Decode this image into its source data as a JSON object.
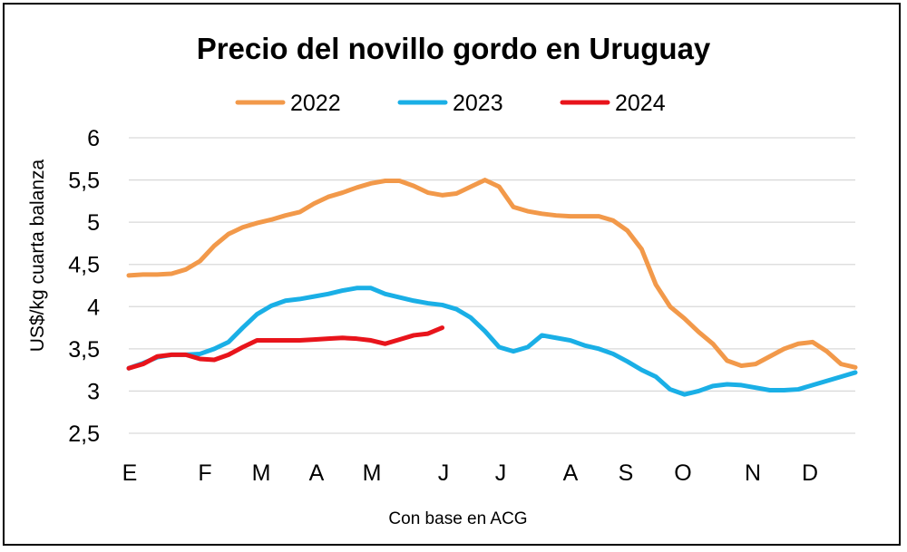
{
  "chart_data": {
    "type": "line",
    "title": "Precio del novillo gordo en Uruguay",
    "ylabel": "US$/kg cuarta balanza",
    "xlabel": "",
    "note": "Con base en ACG",
    "ylim": [
      2.5,
      6
    ],
    "yticks": [
      "2,5",
      "3",
      "3,5",
      "4",
      "4,5",
      "5",
      "5,5",
      "6"
    ],
    "grid": true,
    "legend_position": "top",
    "month_labels": [
      "E",
      "F",
      "M",
      "A",
      "M",
      "J",
      "J",
      "A",
      "S",
      "O",
      "N",
      "D"
    ],
    "x_unit": "week of year (0-51)",
    "series": [
      {
        "name": "2022",
        "color": "#f2994a",
        "x": [
          0,
          1,
          2,
          3,
          4,
          5,
          6,
          7,
          8,
          9,
          10,
          11,
          12,
          13,
          14,
          15,
          16,
          17,
          18,
          19,
          20,
          21,
          22,
          23,
          24,
          25,
          26,
          27,
          28,
          29,
          30,
          31,
          32,
          33,
          34,
          35,
          36,
          37,
          38,
          39,
          40,
          41,
          42,
          43,
          44,
          45,
          46,
          47,
          48,
          49,
          50,
          51
        ],
        "values": [
          4.37,
          4.38,
          4.38,
          4.39,
          4.44,
          4.54,
          4.72,
          4.86,
          4.94,
          4.99,
          5.03,
          5.08,
          5.12,
          5.22,
          5.3,
          5.35,
          5.41,
          5.46,
          5.49,
          5.49,
          5.43,
          5.35,
          5.32,
          5.34,
          5.42,
          5.5,
          5.42,
          5.18,
          5.13,
          5.1,
          5.08,
          5.07,
          5.07,
          5.07,
          5.02,
          4.9,
          4.68,
          4.26,
          4.0,
          3.86,
          3.7,
          3.56,
          3.36,
          3.3,
          3.32,
          3.41,
          3.5,
          3.56,
          3.58,
          3.47,
          3.32,
          3.28
        ]
      },
      {
        "name": "2023",
        "color": "#1aafe6",
        "x": [
          0,
          1,
          2,
          3,
          4,
          5,
          6,
          7,
          8,
          9,
          10,
          11,
          12,
          13,
          14,
          15,
          16,
          17,
          18,
          19,
          20,
          21,
          22,
          23,
          24,
          25,
          26,
          27,
          28,
          29,
          30,
          31,
          32,
          33,
          34,
          35,
          36,
          37,
          38,
          39,
          40,
          41,
          42,
          43,
          44,
          45,
          46,
          47,
          48,
          49,
          50,
          51
        ],
        "values": [
          3.27,
          3.33,
          3.4,
          3.43,
          3.43,
          3.44,
          3.5,
          3.58,
          3.75,
          3.91,
          4.01,
          4.07,
          4.09,
          4.12,
          4.15,
          4.19,
          4.22,
          4.22,
          4.15,
          4.11,
          4.07,
          4.04,
          4.02,
          3.97,
          3.87,
          3.71,
          3.52,
          3.47,
          3.52,
          3.66,
          3.63,
          3.6,
          3.54,
          3.5,
          3.44,
          3.35,
          3.25,
          3.17,
          3.02,
          2.96,
          3.0,
          3.06,
          3.08,
          3.07,
          3.04,
          3.01,
          3.01,
          3.02,
          3.07,
          3.12,
          3.17,
          3.22
        ]
      },
      {
        "name": "2024",
        "color": "#e8141b",
        "x": [
          0,
          1,
          2,
          3,
          4,
          5,
          6,
          7,
          8,
          9,
          10,
          11,
          12,
          13,
          14,
          15,
          16,
          17,
          18,
          19,
          20,
          21,
          22
        ],
        "values": [
          3.27,
          3.32,
          3.41,
          3.43,
          3.43,
          3.38,
          3.37,
          3.43,
          3.52,
          3.6,
          3.6,
          3.6,
          3.6,
          3.61,
          3.62,
          3.63,
          3.62,
          3.6,
          3.56,
          3.61,
          3.66,
          3.68,
          3.75
        ]
      }
    ]
  }
}
